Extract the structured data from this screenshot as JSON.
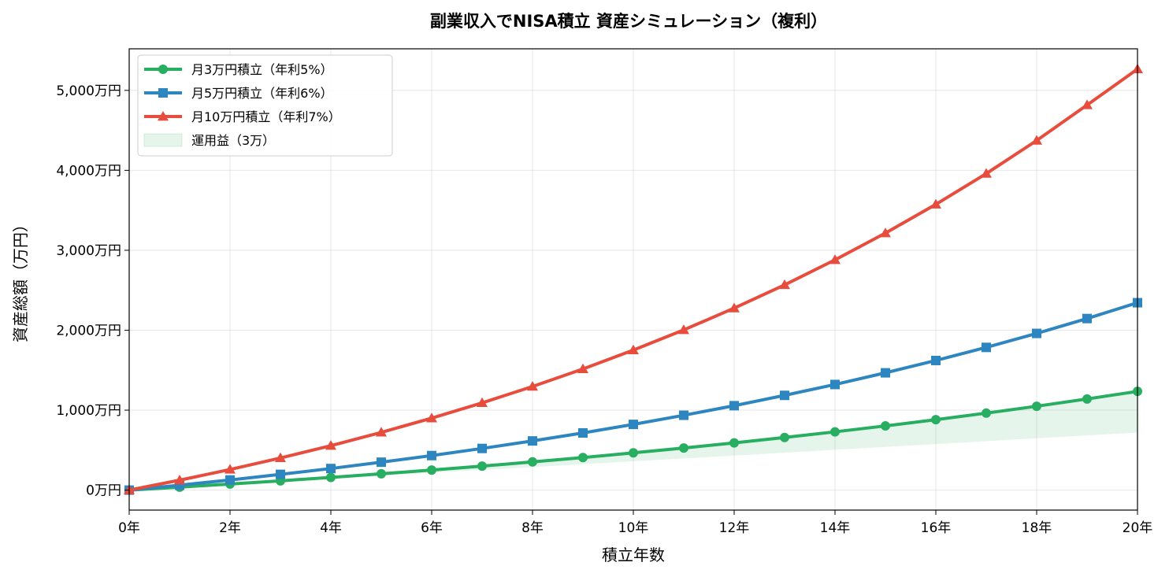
{
  "chart_data": {
    "type": "line",
    "title": "副業収入でNISA積立 資産シミュレーション（複利）",
    "xlabel": "積立年数",
    "ylabel": "資産総額（万円）",
    "xlim": [
      0,
      20
    ],
    "ylim": [
      -250,
      5520
    ],
    "x_ticks": [
      0,
      2,
      4,
      6,
      8,
      10,
      12,
      14,
      16,
      18,
      20
    ],
    "x_tick_labels": [
      "0年",
      "2年",
      "4年",
      "6年",
      "8年",
      "10年",
      "12年",
      "14年",
      "16年",
      "18年",
      "20年"
    ],
    "y_ticks": [
      0,
      1000,
      2000,
      3000,
      4000,
      5000
    ],
    "y_tick_labels": [
      "0万円",
      "1,000万円",
      "2,000万円",
      "3,000万円",
      "4,000万円",
      "5,000万円"
    ],
    "grid": true,
    "legend_position": "top-left",
    "x": [
      0,
      1,
      2,
      3,
      4,
      5,
      6,
      7,
      8,
      9,
      10,
      11,
      12,
      13,
      14,
      15,
      16,
      17,
      18,
      19,
      20
    ],
    "series": [
      {
        "name": "月3万円積立（年利5%）",
        "color": "#27ae60",
        "marker": "circle",
        "values": [
          0,
          37,
          76,
          116,
          159,
          204,
          251,
          300,
          353,
          407,
          466,
          527,
          591,
          658,
          729,
          803,
          881,
          963,
          1049,
          1140,
          1235
        ]
      },
      {
        "name": "月5万円積立（年利6%）",
        "color": "#2e86c1",
        "marker": "square",
        "values": [
          0,
          62,
          127,
          197,
          270,
          349,
          432,
          521,
          615,
          715,
          822,
          936,
          1056,
          1185,
          1321,
          1467,
          1621,
          1785,
          1960,
          2146,
          2344
        ]
      },
      {
        "name": "月10万円積立（年利7%）",
        "color": "#e74c3c",
        "marker": "triangle",
        "values": [
          0,
          124,
          258,
          402,
          556,
          722,
          900,
          1091,
          1296,
          1515,
          1751,
          2004,
          2276,
          2567,
          2880,
          3215,
          3574,
          3959,
          4373,
          4817,
          5266
        ]
      }
    ],
    "fill_series": {
      "name": "運用益（3万）",
      "color": "#27ae60",
      "lower": [
        0,
        36,
        72,
        108,
        144,
        180,
        216,
        252,
        288,
        324,
        360,
        396,
        432,
        468,
        504,
        540,
        576,
        612,
        648,
        684,
        720
      ],
      "upper": [
        0,
        37,
        76,
        116,
        159,
        204,
        251,
        300,
        353,
        407,
        466,
        527,
        591,
        658,
        729,
        803,
        881,
        963,
        1049,
        1140,
        1235
      ]
    }
  }
}
